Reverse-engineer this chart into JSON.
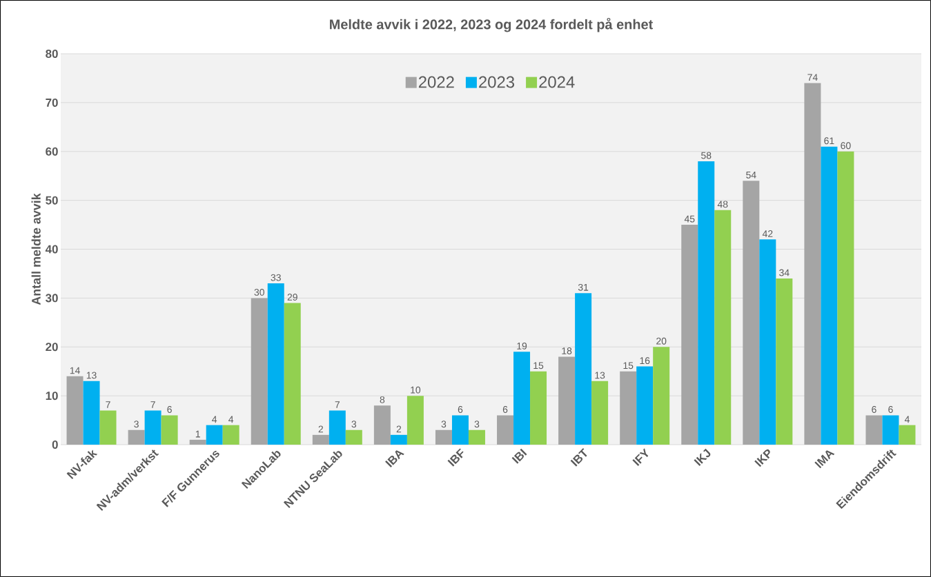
{
  "chart_data": {
    "type": "bar",
    "title": "Meldte avvik i 2022, 2023 og 2024 fordelt på enhet",
    "ylabel": "Antall meldte avvik",
    "categories": [
      "NV-fak",
      "NV-adm/verkst",
      "F/F Gunnerus",
      "NanoLab",
      "NTNU SeaLab",
      "IBA",
      "IBF",
      "IBI",
      "IBT",
      "IFY",
      "IKJ",
      "IKP",
      "IMA",
      "Eiendomsdrift"
    ],
    "series": [
      {
        "name": "2022",
        "color": "#a5a5a5",
        "values": [
          14,
          3,
          1,
          30,
          2,
          8,
          3,
          6,
          18,
          15,
          45,
          54,
          74,
          6
        ]
      },
      {
        "name": "2023",
        "color": "#00b0f0",
        "values": [
          13,
          7,
          4,
          33,
          7,
          2,
          6,
          19,
          31,
          16,
          58,
          42,
          61,
          6
        ]
      },
      {
        "name": "2024",
        "color": "#92d050",
        "values": [
          7,
          6,
          4,
          29,
          3,
          10,
          3,
          15,
          13,
          20,
          48,
          34,
          60,
          4
        ]
      }
    ],
    "ylim": [
      0,
      80
    ],
    "yticks": [
      0,
      10,
      20,
      30,
      40,
      50,
      60,
      70,
      80
    ],
    "grid": "y",
    "legend": "top",
    "data_labels": true
  }
}
